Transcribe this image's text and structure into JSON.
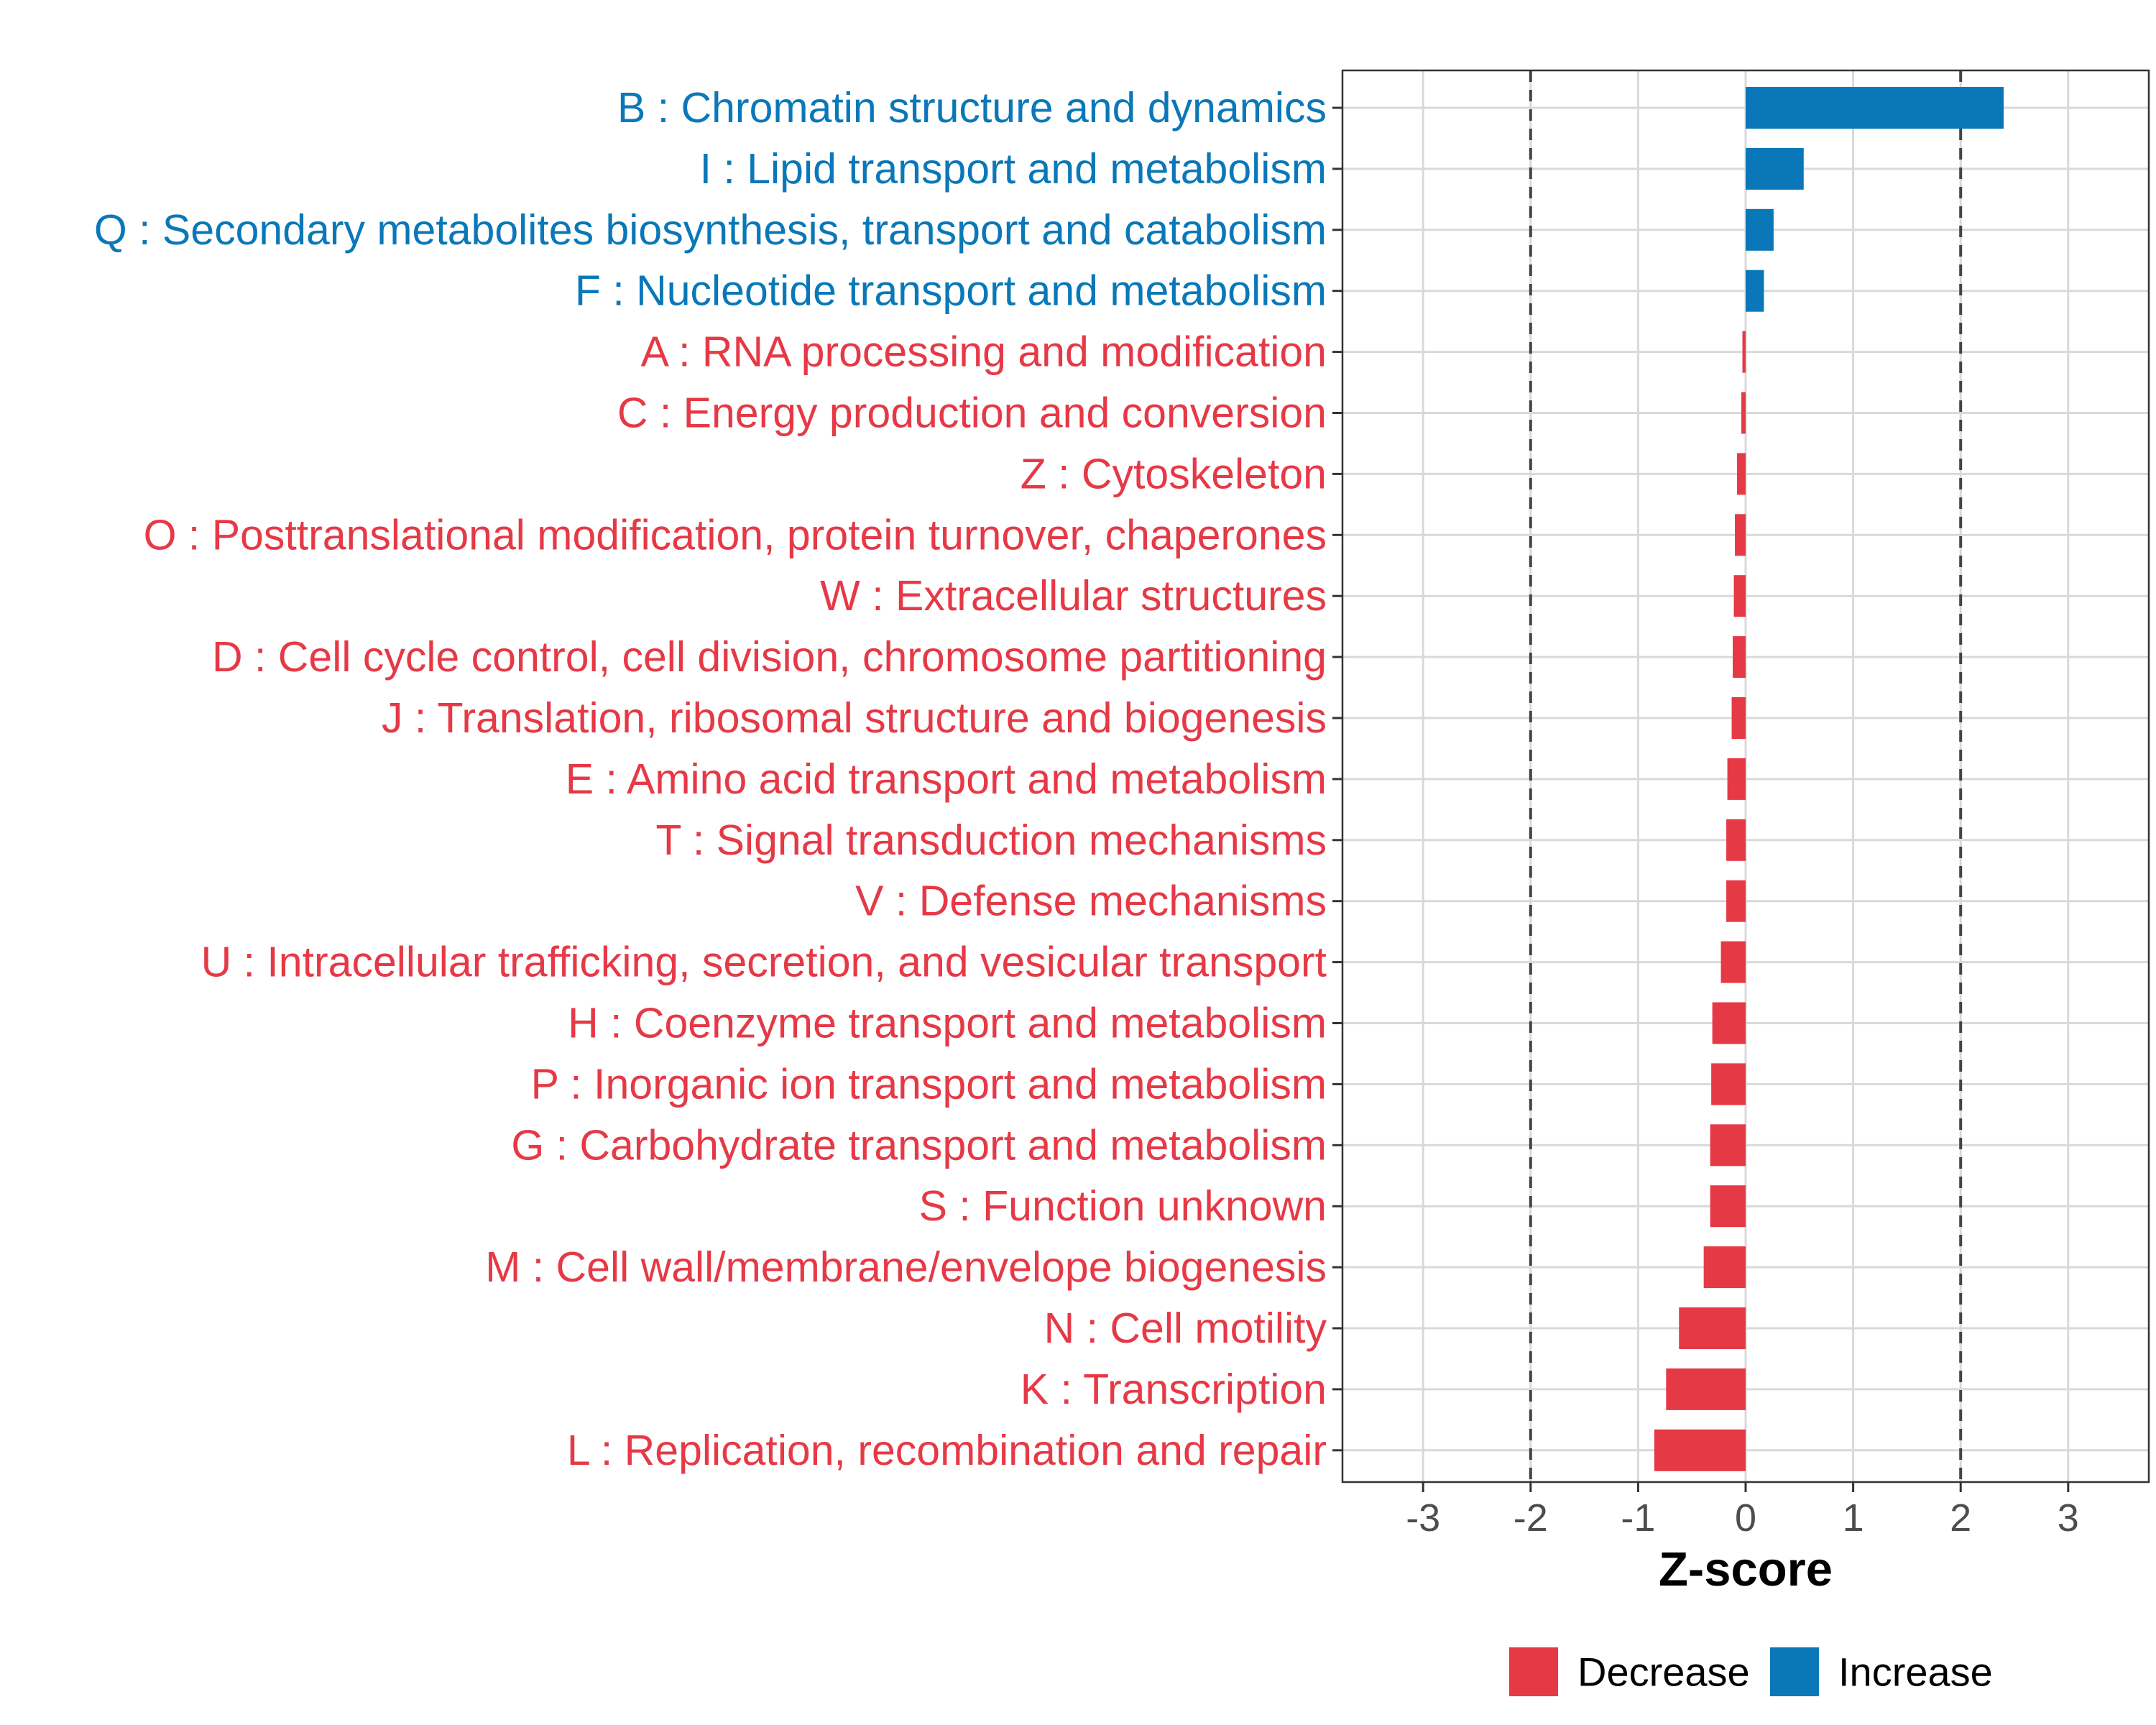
{
  "chart_data": {
    "type": "bar",
    "orientation": "horizontal",
    "categories": [
      "B : Chromatin structure and dynamics",
      "I : Lipid transport and metabolism",
      "Q : Secondary metabolites biosynthesis, transport and catabolism",
      "F : Nucleotide transport and metabolism",
      "A : RNA processing and modification",
      "C : Energy production and conversion",
      "Z : Cytoskeleton",
      "O : Posttranslational modification, protein turnover, chaperones",
      "W : Extracellular structures",
      "D : Cell cycle control, cell division, chromosome partitioning",
      "J : Translation, ribosomal structure and biogenesis",
      "E : Amino acid transport and metabolism",
      "T : Signal transduction mechanisms",
      "V : Defense mechanisms",
      "U : Intracellular trafficking, secretion, and vesicular transport",
      "H : Coenzyme transport and metabolism",
      "P : Inorganic ion transport and metabolism",
      "G : Carbohydrate transport and metabolism",
      "S : Function unknown",
      "M : Cell wall/membrane/envelope biogenesis",
      "N : Cell motility",
      "K : Transcription",
      "L : Replication, recombination and repair"
    ],
    "values": [
      2.4,
      0.54,
      0.26,
      0.17,
      -0.03,
      -0.04,
      -0.08,
      -0.1,
      -0.11,
      -0.12,
      -0.13,
      -0.17,
      -0.18,
      -0.18,
      -0.23,
      -0.31,
      -0.32,
      -0.33,
      -0.33,
      -0.39,
      -0.62,
      -0.74,
      -0.85
    ],
    "groups": [
      "Increase",
      "Increase",
      "Increase",
      "Increase",
      "Decrease",
      "Decrease",
      "Decrease",
      "Decrease",
      "Decrease",
      "Decrease",
      "Decrease",
      "Decrease",
      "Decrease",
      "Decrease",
      "Decrease",
      "Decrease",
      "Decrease",
      "Decrease",
      "Decrease",
      "Decrease",
      "Decrease",
      "Decrease",
      "Decrease"
    ],
    "xlabel": "Z-score",
    "ylabel": "",
    "xlim": [
      -3.75,
      3.75
    ],
    "xticks": [
      -3,
      -2,
      -1,
      0,
      1,
      2,
      3
    ],
    "xtick_labels": [
      "-3",
      "-2",
      "-1",
      "0",
      "1",
      "2",
      "3"
    ],
    "reference_lines": [
      -2,
      2
    ],
    "grid": true,
    "legend": {
      "placement": "bottom",
      "entries": [
        {
          "label": "Decrease",
          "color": "#e63946"
        },
        {
          "label": "Increase",
          "color": "#0a78b8"
        }
      ]
    }
  }
}
